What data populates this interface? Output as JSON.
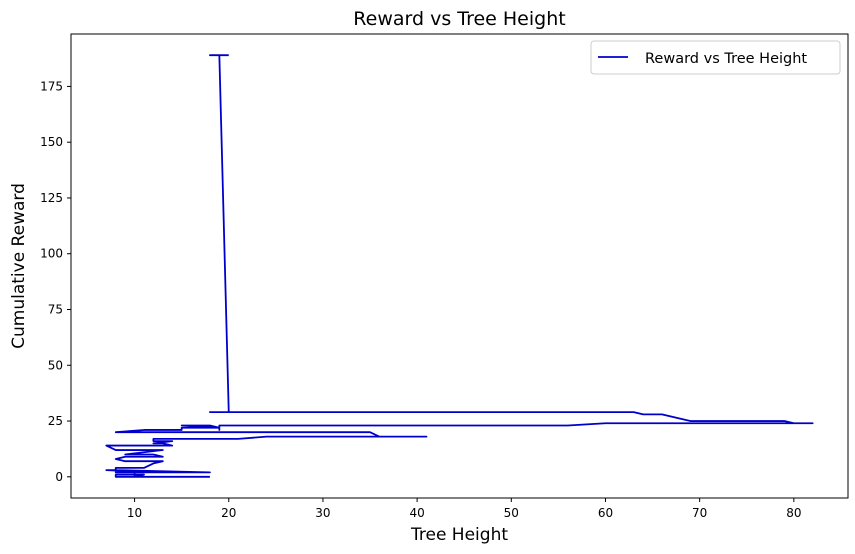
{
  "chart_data": {
    "type": "line",
    "title": "Reward vs Tree Height",
    "xlabel": "Tree Height",
    "ylabel": "Cumulative Reward",
    "xlim": [
      3.25,
      85.75
    ],
    "ylim": [
      -9.5,
      198.5
    ],
    "xticks": [
      10,
      20,
      30,
      40,
      50,
      60,
      70,
      80
    ],
    "yticks": [
      0,
      25,
      50,
      75,
      100,
      125,
      150,
      175
    ],
    "grid": false,
    "legend": {
      "position": "top-right",
      "entries": [
        "Reward vs Tree Height"
      ]
    },
    "series": [
      {
        "name": "Reward vs Tree Height",
        "color": "#0000cc",
        "x": [
          18,
          8,
          8,
          11,
          10,
          10,
          12,
          7,
          8,
          18,
          8,
          8,
          11,
          12,
          12,
          13,
          9,
          8,
          9,
          13,
          12,
          9,
          13,
          8,
          7,
          12,
          14,
          13,
          12,
          14,
          12,
          12,
          21,
          24,
          41,
          36,
          35,
          8,
          11,
          15,
          15,
          19,
          18,
          15,
          19,
          19,
          19,
          56,
          60,
          82,
          80,
          79,
          69,
          66,
          64,
          63,
          18,
          20,
          19,
          18,
          20
        ],
        "y": [
          0,
          0,
          1,
          1,
          0,
          2,
          2,
          3,
          3,
          2,
          2,
          4,
          4,
          6,
          6,
          7,
          7,
          8,
          9,
          9,
          10,
          10,
          12,
          12,
          14,
          14,
          14,
          15,
          15,
          16,
          16,
          17,
          17,
          18,
          18,
          18,
          20,
          20,
          21,
          21,
          22,
          22,
          23,
          23,
          22,
          21,
          23,
          23,
          24,
          24,
          24,
          25,
          25,
          28,
          28,
          29,
          29,
          29,
          189,
          189,
          189
        ]
      }
    ]
  }
}
